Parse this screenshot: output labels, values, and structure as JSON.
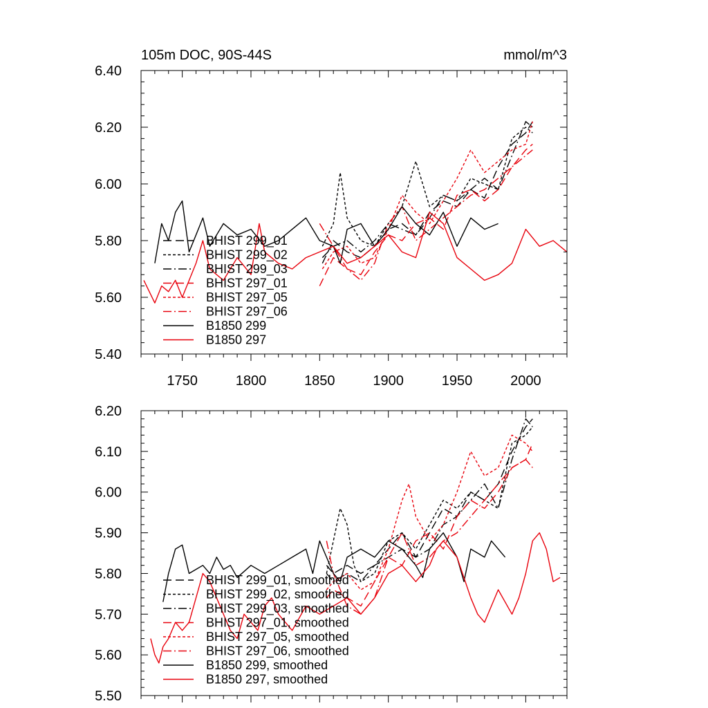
{
  "chart_data": [
    {
      "type": "line",
      "title": "105m DOC, 90S-44S",
      "units_label": "mmol/m^3",
      "xlabel": "",
      "ylabel": "",
      "xlim": [
        1720,
        2030
      ],
      "ylim": [
        5.4,
        6.4
      ],
      "xticks": [
        1750,
        1800,
        1850,
        1900,
        1950,
        2000
      ],
      "xtick_labels": [
        "1750",
        "1800",
        "1850",
        "1900",
        "1950",
        "2000"
      ],
      "yticks": [
        5.4,
        5.6,
        5.8,
        6.0,
        6.2,
        6.4
      ],
      "ytick_labels": [
        "5.40",
        "5.60",
        "5.80",
        "6.00",
        "6.20",
        "6.40"
      ],
      "grid": false,
      "legend_position": "lower-left",
      "series": [
        {
          "name": "BHIST 299_01",
          "color": "#000000",
          "dash": "long-dash",
          "x": [
            1852,
            1860,
            1870,
            1880,
            1890,
            1900,
            1910,
            1920,
            1930,
            1940,
            1950,
            1960,
            1970,
            1980,
            1990,
            2000,
            2005
          ],
          "values": [
            5.72,
            5.8,
            5.76,
            5.74,
            5.78,
            5.84,
            5.86,
            5.82,
            5.9,
            5.94,
            5.92,
            5.98,
            5.95,
            6.06,
            6.14,
            6.18,
            6.22
          ]
        },
        {
          "name": "BHIST 299_02",
          "color": "#000000",
          "dash": "short-dash",
          "x": [
            1852,
            1860,
            1865,
            1870,
            1880,
            1890,
            1900,
            1910,
            1920,
            1930,
            1940,
            1950,
            1960,
            1970,
            1980,
            1990,
            2000,
            2005
          ],
          "values": [
            5.78,
            5.86,
            6.04,
            5.88,
            5.8,
            5.78,
            5.86,
            5.92,
            6.08,
            5.92,
            5.96,
            5.94,
            6.02,
            6.0,
            5.98,
            6.16,
            6.2,
            6.18
          ]
        },
        {
          "name": "BHIST 299_03",
          "color": "#000000",
          "dash": "dash-dot",
          "x": [
            1852,
            1860,
            1870,
            1880,
            1890,
            1900,
            1910,
            1920,
            1930,
            1940,
            1950,
            1960,
            1970,
            1980,
            1990,
            2000,
            2005
          ],
          "values": [
            5.74,
            5.78,
            5.8,
            5.76,
            5.8,
            5.86,
            5.84,
            5.82,
            5.88,
            5.96,
            5.94,
            5.98,
            6.02,
            5.98,
            6.1,
            6.22,
            6.2
          ]
        },
        {
          "name": "BHIST 297_01",
          "color": "#e8000b",
          "dash": "long-dash",
          "x": [
            1850,
            1860,
            1870,
            1880,
            1890,
            1900,
            1910,
            1920,
            1930,
            1940,
            1950,
            1960,
            1970,
            1980,
            1990,
            2000,
            2005
          ],
          "values": [
            5.64,
            5.74,
            5.7,
            5.68,
            5.76,
            5.82,
            5.8,
            5.86,
            5.88,
            5.84,
            5.96,
            5.98,
            5.94,
            5.98,
            6.06,
            6.12,
            6.14
          ]
        },
        {
          "name": "BHIST 297_05",
          "color": "#e8000b",
          "dash": "short-dash",
          "x": [
            1852,
            1860,
            1870,
            1880,
            1890,
            1900,
            1910,
            1920,
            1930,
            1940,
            1950,
            1960,
            1970,
            1980,
            1990,
            2000,
            2005
          ],
          "values": [
            5.7,
            5.76,
            5.78,
            5.72,
            5.74,
            5.84,
            5.96,
            5.9,
            5.86,
            5.94,
            6.02,
            6.12,
            6.04,
            6.08,
            6.12,
            6.14,
            6.22
          ]
        },
        {
          "name": "BHIST 297_06",
          "color": "#e8000b",
          "dash": "dash-dot",
          "x": [
            1850,
            1860,
            1870,
            1880,
            1890,
            1900,
            1910,
            1920,
            1930,
            1940,
            1950,
            1960,
            1970,
            1980,
            1990,
            2000,
            2005
          ],
          "values": [
            5.86,
            5.78,
            5.7,
            5.66,
            5.72,
            5.86,
            5.92,
            5.8,
            5.84,
            5.88,
            5.92,
            5.96,
            5.98,
            6.02,
            6.06,
            6.1,
            6.12
          ]
        },
        {
          "name": "B1850 299",
          "color": "#000000",
          "dash": "solid",
          "x": [
            1730,
            1735,
            1740,
            1745,
            1750,
            1755,
            1760,
            1765,
            1770,
            1780,
            1790,
            1800,
            1810,
            1820,
            1830,
            1840,
            1850,
            1860,
            1865,
            1870,
            1880,
            1890,
            1900,
            1910,
            1920,
            1930,
            1940,
            1950,
            1960,
            1970,
            1980
          ],
          "values": [
            5.72,
            5.86,
            5.8,
            5.9,
            5.94,
            5.76,
            5.82,
            5.88,
            5.78,
            5.86,
            5.82,
            5.84,
            5.78,
            5.8,
            5.84,
            5.88,
            5.8,
            5.78,
            5.72,
            5.84,
            5.86,
            5.78,
            5.84,
            5.92,
            5.86,
            5.82,
            5.9,
            5.78,
            5.88,
            5.84,
            5.86
          ]
        },
        {
          "name": "B1850 297",
          "color": "#e8000b",
          "dash": "solid",
          "x": [
            1722,
            1730,
            1735,
            1740,
            1745,
            1750,
            1760,
            1765,
            1770,
            1780,
            1790,
            1800,
            1806,
            1810,
            1820,
            1830,
            1840,
            1850,
            1860,
            1870,
            1880,
            1890,
            1900,
            1910,
            1920,
            1930,
            1940,
            1950,
            1960,
            1970,
            1980,
            1990,
            2000,
            2010,
            2020,
            2030
          ],
          "values": [
            5.66,
            5.58,
            5.64,
            5.62,
            5.66,
            5.6,
            5.72,
            5.8,
            5.7,
            5.66,
            5.74,
            5.68,
            5.86,
            5.76,
            5.72,
            5.7,
            5.74,
            5.76,
            5.78,
            5.72,
            5.74,
            5.78,
            5.82,
            5.76,
            5.74,
            5.9,
            5.86,
            5.74,
            5.7,
            5.66,
            5.68,
            5.72,
            5.84,
            5.78,
            5.8,
            5.76
          ]
        }
      ]
    },
    {
      "type": "line",
      "title": "",
      "xlabel": "",
      "ylabel": "",
      "xlim": [
        1720,
        2030
      ],
      "ylim": [
        5.5,
        6.2
      ],
      "xticks": [
        1750,
        1800,
        1850,
        1900,
        1950,
        2000
      ],
      "yticks": [
        5.5,
        5.6,
        5.7,
        5.8,
        5.9,
        6.0,
        6.1,
        6.2
      ],
      "ytick_labels": [
        "5.50",
        "5.60",
        "5.70",
        "5.80",
        "5.90",
        "6.00",
        "6.10",
        "6.20"
      ],
      "grid": false,
      "legend_position": "lower-left",
      "series": [
        {
          "name": "BHIST 299_01, smoothed",
          "color": "#000000",
          "dash": "long-dash",
          "x": [
            1855,
            1860,
            1870,
            1880,
            1890,
            1900,
            1910,
            1920,
            1930,
            1940,
            1950,
            1960,
            1970,
            1980,
            1990,
            2000,
            2005
          ],
          "values": [
            5.82,
            5.8,
            5.82,
            5.8,
            5.82,
            5.86,
            5.9,
            5.84,
            5.9,
            5.96,
            5.94,
            6.0,
            5.98,
            6.02,
            6.1,
            6.16,
            6.18
          ]
        },
        {
          "name": "BHIST 299_02, smoothed",
          "color": "#000000",
          "dash": "short-dash",
          "x": [
            1855,
            1860,
            1865,
            1870,
            1875,
            1880,
            1890,
            1900,
            1910,
            1920,
            1930,
            1940,
            1950,
            1960,
            1970,
            1980,
            1990,
            2000,
            2005
          ],
          "values": [
            5.8,
            5.88,
            5.96,
            5.92,
            5.82,
            5.78,
            5.8,
            5.88,
            5.9,
            5.86,
            5.92,
            5.98,
            5.96,
            6.0,
            5.98,
            5.96,
            6.12,
            6.14,
            6.16
          ]
        },
        {
          "name": "BHIST 299_03, smoothed",
          "color": "#000000",
          "dash": "dash-dot",
          "x": [
            1855,
            1860,
            1870,
            1880,
            1890,
            1900,
            1910,
            1920,
            1930,
            1940,
            1950,
            1960,
            1970,
            1980,
            1990,
            2000,
            2005
          ],
          "values": [
            5.8,
            5.78,
            5.8,
            5.78,
            5.82,
            5.84,
            5.86,
            5.84,
            5.86,
            5.92,
            5.94,
            5.98,
            6.02,
            5.96,
            6.08,
            6.18,
            6.16
          ]
        },
        {
          "name": "BHIST 297_01, smoothed",
          "color": "#e8000b",
          "dash": "long-dash",
          "x": [
            1855,
            1860,
            1870,
            1880,
            1890,
            1900,
            1910,
            1920,
            1930,
            1940,
            1950,
            1960,
            1970,
            1980,
            1990,
            2000,
            2005
          ],
          "values": [
            5.74,
            5.76,
            5.74,
            5.72,
            5.78,
            5.84,
            5.82,
            5.88,
            5.9,
            5.86,
            5.94,
            5.98,
            5.96,
            6.0,
            6.06,
            6.08,
            6.12
          ]
        },
        {
          "name": "BHIST 297_05, smoothed",
          "color": "#e8000b",
          "dash": "short-dash",
          "x": [
            1855,
            1860,
            1870,
            1880,
            1890,
            1900,
            1910,
            1915,
            1920,
            1930,
            1940,
            1950,
            1960,
            1970,
            1980,
            1990,
            2000,
            2005
          ],
          "values": [
            5.76,
            5.78,
            5.8,
            5.76,
            5.78,
            5.86,
            5.98,
            6.02,
            5.94,
            5.88,
            5.92,
            6.0,
            6.1,
            6.04,
            6.06,
            6.14,
            6.12,
            6.1
          ]
        },
        {
          "name": "BHIST 297_06, smoothed",
          "color": "#e8000b",
          "dash": "dash-dot",
          "x": [
            1855,
            1860,
            1870,
            1880,
            1890,
            1900,
            1910,
            1920,
            1930,
            1940,
            1950,
            1960,
            1970,
            1980,
            1990,
            2000,
            2005
          ],
          "values": [
            5.88,
            5.8,
            5.72,
            5.7,
            5.74,
            5.84,
            5.9,
            5.82,
            5.84,
            5.88,
            5.9,
            5.94,
            5.98,
            6.02,
            6.06,
            6.08,
            6.06
          ]
        },
        {
          "name": "B1850 299, smoothed",
          "color": "#000000",
          "dash": "solid",
          "x": [
            1736,
            1740,
            1745,
            1750,
            1755,
            1760,
            1765,
            1770,
            1775,
            1780,
            1785,
            1790,
            1800,
            1810,
            1820,
            1830,
            1840,
            1845,
            1850,
            1855,
            1860,
            1865,
            1870,
            1880,
            1890,
            1900,
            1910,
            1920,
            1925,
            1930,
            1940,
            1950,
            1955,
            1960,
            1970,
            1975,
            1980,
            1985
          ],
          "values": [
            5.73,
            5.8,
            5.86,
            5.87,
            5.8,
            5.81,
            5.82,
            5.8,
            5.84,
            5.81,
            5.82,
            5.79,
            5.82,
            5.8,
            5.82,
            5.84,
            5.86,
            5.8,
            5.88,
            5.84,
            5.8,
            5.78,
            5.84,
            5.86,
            5.84,
            5.88,
            5.86,
            5.82,
            5.79,
            5.86,
            5.9,
            5.84,
            5.78,
            5.86,
            5.84,
            5.88,
            5.86,
            5.84
          ]
        },
        {
          "name": "B1850 297, smoothed",
          "color": "#e8000b",
          "dash": "solid",
          "x": [
            1727,
            1730,
            1733,
            1736,
            1740,
            1745,
            1750,
            1755,
            1760,
            1765,
            1770,
            1775,
            1780,
            1785,
            1790,
            1795,
            1800,
            1805,
            1810,
            1815,
            1820,
            1830,
            1840,
            1850,
            1860,
            1870,
            1880,
            1890,
            1900,
            1910,
            1920,
            1930,
            1935,
            1940,
            1950,
            1960,
            1965,
            1970,
            1975,
            1980,
            1990,
            1995,
            2000,
            2005,
            2010,
            2015,
            2020,
            2025
          ],
          "values": [
            5.64,
            5.6,
            5.58,
            5.62,
            5.64,
            5.68,
            5.66,
            5.68,
            5.74,
            5.8,
            5.78,
            5.74,
            5.7,
            5.66,
            5.64,
            5.7,
            5.68,
            5.66,
            5.72,
            5.74,
            5.7,
            5.66,
            5.72,
            5.7,
            5.72,
            5.74,
            5.7,
            5.74,
            5.8,
            5.82,
            5.78,
            5.82,
            5.86,
            5.88,
            5.84,
            5.74,
            5.7,
            5.68,
            5.72,
            5.76,
            5.7,
            5.74,
            5.8,
            5.88,
            5.9,
            5.86,
            5.78,
            5.79
          ]
        }
      ]
    }
  ]
}
